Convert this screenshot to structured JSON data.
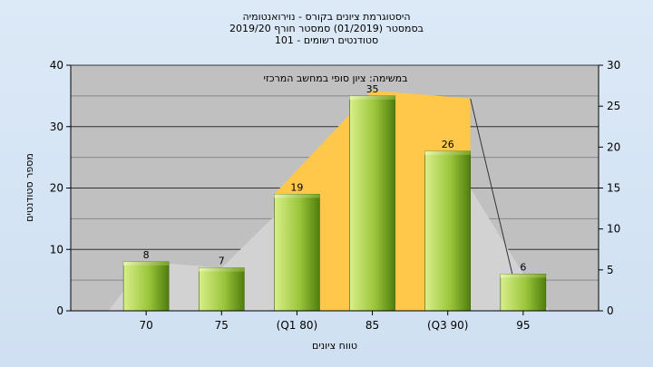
{
  "chart_data": {
    "type": "bar",
    "title_lines": [
      "היסטוגרמת ציונים בקורס - נוירואנטומיה",
      "בסמסטר  (01/2019)  סמסטר חורף 2019/20",
      "סטודנטים רשומים - 101"
    ],
    "xlabel": "טווח ציונים",
    "ylabel": "מספר סטודנטים",
    "annotation": "במשימה: ציון סופי במחשב המרכזי",
    "categories": [
      "70",
      "75",
      "(Q1 80)",
      "85",
      "(Q3 90)",
      "95"
    ],
    "values": [
      8,
      7,
      19,
      35,
      26,
      6
    ],
    "data_labels": [
      "8",
      "7",
      "19",
      "35",
      "26",
      "6"
    ],
    "ylim": [
      0,
      40
    ],
    "y_ticks": [
      "0",
      "10",
      "20",
      "30",
      "40"
    ],
    "y2lim": [
      0,
      30
    ],
    "y2_ticks": [
      "0",
      "5",
      "10",
      "15",
      "20",
      "25",
      "30"
    ],
    "grid": true,
    "colors": {
      "plot_bg": "#c0c0c0",
      "bar_light": "#d8ef8a",
      "bar_dark": "#5a8a10",
      "iqr_band": "#ffc84a",
      "outline": "#333333"
    }
  }
}
